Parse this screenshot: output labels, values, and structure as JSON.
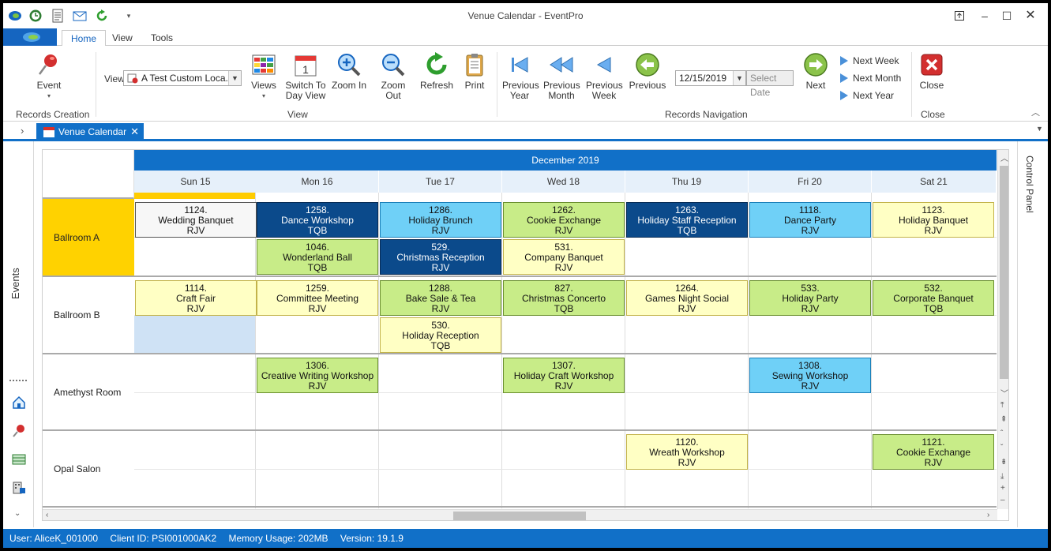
{
  "window": {
    "title": "Venue Calendar - EventPro"
  },
  "ribbon_tabs": [
    "Home",
    "View",
    "Tools"
  ],
  "ribbon": {
    "event_label": "Event",
    "records_creation": "Records Creation",
    "view_label": "View",
    "view_combo_value": "A Test Custom Loca...",
    "views_label": "Views",
    "switch_label_1": "Switch To",
    "switch_label_2": "Day View",
    "zoom_in": "Zoom In",
    "zoom_out": "Zoom Out",
    "refresh": "Refresh",
    "print": "Print",
    "view_group": "View",
    "prev_year_1": "Previous",
    "prev_year_2": "Year",
    "prev_month_1": "Previous",
    "prev_month_2": "Month",
    "prev_week_1": "Previous",
    "prev_week_2": "Week",
    "previous": "Previous",
    "date_value": "12/15/2019",
    "select_date": "Select Date",
    "next": "Next",
    "next_week": "Next Week",
    "next_month": "Next Month",
    "next_year": "Next Year",
    "records_navigation": "Records Navigation",
    "close": "Close",
    "close_group": "Close"
  },
  "doc_tab": {
    "label": "Venue Calendar"
  },
  "left_panel": {
    "events": "Events"
  },
  "right_panel": {
    "control_panel": "Control Panel"
  },
  "calendar": {
    "month": "December 2019",
    "days": [
      "Sun 15",
      "Mon 16",
      "Tue 17",
      "Wed 18",
      "Thu 19",
      "Fri 20",
      "Sat 21"
    ],
    "rooms": [
      "Ballroom A",
      "Ballroom B",
      "Amethyst Room",
      "Opal Salon"
    ],
    "events": [
      {
        "room": 0,
        "day": 0,
        "slot": 0,
        "num": "1124.",
        "name": "Wedding Banquet",
        "code": "RJV",
        "color": "white"
      },
      {
        "room": 0,
        "day": 1,
        "slot": 0,
        "num": "1258.",
        "name": "Dance Workshop",
        "code": "TQB",
        "color": "navy"
      },
      {
        "room": 0,
        "day": 2,
        "slot": 0,
        "num": "1286.",
        "name": "Holiday Brunch",
        "code": "RJV",
        "color": "sky"
      },
      {
        "room": 0,
        "day": 3,
        "slot": 0,
        "num": "1262.",
        "name": "Cookie Exchange",
        "code": "RJV",
        "color": "green"
      },
      {
        "room": 0,
        "day": 4,
        "slot": 0,
        "num": "1263.",
        "name": "Holiday Staff Reception",
        "code": "TQB",
        "color": "navy"
      },
      {
        "room": 0,
        "day": 5,
        "slot": 0,
        "num": "1118.",
        "name": "Dance Party",
        "code": "RJV",
        "color": "sky"
      },
      {
        "room": 0,
        "day": 6,
        "slot": 0,
        "num": "1123.",
        "name": "Holiday Banquet",
        "code": "RJV",
        "color": "yellow"
      },
      {
        "room": 0,
        "day": 1,
        "slot": 1,
        "num": "1046.",
        "name": "Wonderland Ball",
        "code": "TQB",
        "color": "green"
      },
      {
        "room": 0,
        "day": 2,
        "slot": 1,
        "num": "529.",
        "name": "Christmas Reception",
        "code": "RJV",
        "color": "navy"
      },
      {
        "room": 0,
        "day": 3,
        "slot": 1,
        "num": "531.",
        "name": "Company Banquet",
        "code": "RJV",
        "color": "yellow"
      },
      {
        "room": 1,
        "day": 0,
        "slot": 0,
        "num": "1114.",
        "name": "Craft Fair",
        "code": "RJV",
        "color": "yellow"
      },
      {
        "room": 1,
        "day": 1,
        "slot": 0,
        "num": "1259.",
        "name": "Committee Meeting",
        "code": "RJV",
        "color": "yellow"
      },
      {
        "room": 1,
        "day": 2,
        "slot": 0,
        "num": "1288.",
        "name": "Bake Sale & Tea",
        "code": "RJV",
        "color": "green"
      },
      {
        "room": 1,
        "day": 3,
        "slot": 0,
        "num": "827.",
        "name": "Christmas Concerto",
        "code": "TQB",
        "color": "green"
      },
      {
        "room": 1,
        "day": 4,
        "slot": 0,
        "num": "1264.",
        "name": "Games Night Social",
        "code": "RJV",
        "color": "yellow"
      },
      {
        "room": 1,
        "day": 5,
        "slot": 0,
        "num": "533.",
        "name": "Holiday Party",
        "code": "RJV",
        "color": "green"
      },
      {
        "room": 1,
        "day": 6,
        "slot": 0,
        "num": "532.",
        "name": "Corporate Banquet",
        "code": "TQB",
        "color": "green"
      },
      {
        "room": 1,
        "day": 2,
        "slot": 1,
        "num": "530.",
        "name": "Holiday Reception",
        "code": "TQB",
        "color": "yellow"
      },
      {
        "room": 2,
        "day": 1,
        "slot": 0,
        "num": "1306.",
        "name": "Creative Writing Workshop",
        "code": "RJV",
        "color": "green"
      },
      {
        "room": 2,
        "day": 3,
        "slot": 0,
        "num": "1307.",
        "name": "Holiday Craft Workshop",
        "code": "RJV",
        "color": "green"
      },
      {
        "room": 2,
        "day": 5,
        "slot": 0,
        "num": "1308.",
        "name": "Sewing Workshop",
        "code": "RJV",
        "color": "sky"
      },
      {
        "room": 3,
        "day": 4,
        "slot": 0,
        "num": "1120.",
        "name": "Wreath Workshop",
        "code": "RJV",
        "color": "yellow"
      },
      {
        "room": 3,
        "day": 6,
        "slot": 0,
        "num": "1121.",
        "name": "Cookie Exchange",
        "code": "RJV",
        "color": "green"
      }
    ]
  },
  "status": {
    "user": "User: AliceK_001000",
    "client": "Client ID: PSI001000AK2",
    "memory": "Memory Usage: 202MB",
    "version": "Version: 19.1.9"
  }
}
